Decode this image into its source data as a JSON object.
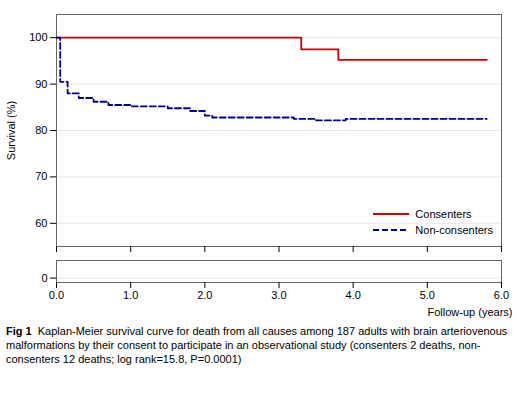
{
  "chart_data": [
    {
      "type": "step",
      "ylabel": "Survival (%)",
      "xlim": [
        0,
        6
      ],
      "xticks": [
        0,
        1,
        2,
        3,
        4,
        5,
        6
      ],
      "ylim": [
        55,
        105
      ],
      "yticks": [
        60,
        70,
        80,
        90,
        100
      ],
      "grid": true,
      "tick_labels": "y",
      "legend": "lower right",
      "series": [
        {
          "name": "Consenters",
          "color": "#cc0000",
          "line_style": "solid",
          "x": [
            0,
            3.3,
            3.3,
            3.8,
            3.8,
            4.0,
            4.0,
            5.8
          ],
          "values": [
            100,
            100,
            97.5,
            97.5,
            95.2,
            95.2,
            95.2,
            95.2
          ]
        },
        {
          "name": "Non-consenters",
          "color": "#00008b",
          "line_style": "dashed",
          "x": [
            0,
            0.05,
            0.15,
            0.3,
            0.5,
            0.7,
            1.0,
            1.5,
            1.8,
            2.0,
            2.1,
            3.2,
            3.5,
            3.9,
            5.8
          ],
          "values": [
            100,
            90.5,
            88.0,
            87.0,
            86.2,
            85.5,
            85.2,
            84.8,
            84.2,
            83.2,
            82.8,
            82.5,
            82.2,
            82.5,
            82.5
          ]
        }
      ],
      "caption": {
        "label": "Fig 1",
        "text": "Kaplan-Meier survival curve for death from all causes among 187 adults with brain arteriovenous malformations by their consent to participate in an observational study (consenters 2 deaths, non-consenters 12 deaths; log rank=15.8, P=0.0001)"
      }
    },
    {
      "type": "step",
      "xlabel": "Follow-up (years)",
      "xlim": [
        0,
        6
      ],
      "xticks": [
        0,
        1,
        2,
        3,
        4,
        5,
        6
      ],
      "ylim": [
        -2,
        8
      ],
      "yticks": [
        0
      ],
      "grid": true,
      "series": []
    }
  ]
}
